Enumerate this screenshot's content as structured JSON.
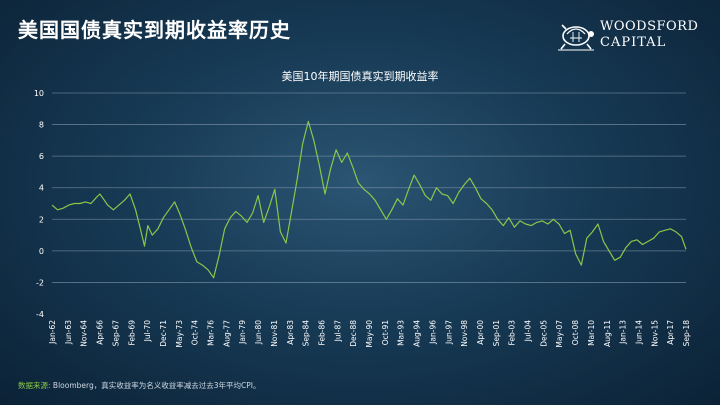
{
  "slide": {
    "title": "美国国债真实到期收益率历史"
  },
  "logo": {
    "line1": "WOODSFORD",
    "line2": "CAPITAL"
  },
  "footnote": {
    "label": "数据来源:",
    "text": "Bloomberg，真实收益率为名义收益率减去过去3年平均CPI。"
  },
  "colors": {
    "line": "#8ac64a",
    "grid": "#9fb2c4",
    "source_label": "#8ac64a"
  },
  "chart_data": {
    "type": "line",
    "title": "美国10年期国债真实到期收益率",
    "xlabel": "",
    "ylabel": "",
    "ylim": [
      -4,
      10
    ],
    "y_ticks": [
      -4,
      -2,
      0,
      2,
      4,
      6,
      8,
      10
    ],
    "grid": true,
    "x_tick_labels": [
      "Jan-62",
      "Jun-63",
      "Nov-64",
      "Apr-66",
      "Sep-67",
      "Feb-69",
      "Jul-70",
      "Dec-71",
      "May-73",
      "Oct-74",
      "Mar-76",
      "Aug-77",
      "Jan-79",
      "Jun-80",
      "Nov-81",
      "Apr-83",
      "Sep-84",
      "Feb-86",
      "Jul-87",
      "Dec-88",
      "May-90",
      "Oct-91",
      "Mar-93",
      "Aug-94",
      "Jan-96",
      "Jun-97",
      "Nov-98",
      "Apr-00",
      "Sep-01",
      "Feb-03",
      "Jul-04",
      "Dec-05",
      "May-07",
      "Oct-08",
      "Mar-10",
      "Aug-11",
      "Jan-13",
      "Jun-14",
      "Nov-15",
      "Apr-17",
      "Sep-18"
    ],
    "x": [
      1962.0,
      1962.5,
      1963.0,
      1963.5,
      1964.0,
      1964.5,
      1965.0,
      1965.5,
      1966.0,
      1966.3,
      1966.7,
      1967.0,
      1967.5,
      1968.0,
      1968.5,
      1969.0,
      1969.5,
      1970.0,
      1970.3,
      1970.6,
      1971.0,
      1971.5,
      1972.0,
      1972.5,
      1973.0,
      1973.5,
      1974.0,
      1974.5,
      1975.0,
      1975.5,
      1976.0,
      1976.5,
      1977.0,
      1977.5,
      1978.0,
      1978.5,
      1979.0,
      1979.5,
      1980.0,
      1980.5,
      1981.0,
      1981.5,
      1982.0,
      1982.5,
      1983.0,
      1983.5,
      1984.0,
      1984.5,
      1985.0,
      1985.5,
      1986.0,
      1986.5,
      1987.0,
      1987.5,
      1988.0,
      1988.5,
      1989.0,
      1989.5,
      1990.0,
      1990.5,
      1991.0,
      1991.5,
      1992.0,
      1992.5,
      1993.0,
      1993.5,
      1994.0,
      1994.5,
      1995.0,
      1995.5,
      1996.0,
      1996.5,
      1997.0,
      1997.5,
      1998.0,
      1998.5,
      1999.0,
      1999.5,
      2000.0,
      2000.5,
      2001.0,
      2001.5,
      2002.0,
      2002.5,
      2003.0,
      2003.5,
      2004.0,
      2004.5,
      2005.0,
      2005.5,
      2006.0,
      2006.5,
      2007.0,
      2007.5,
      2008.0,
      2008.5,
      2009.0,
      2009.5,
      2010.0,
      2010.5,
      2011.0,
      2011.5,
      2012.0,
      2012.5,
      2013.0,
      2013.5,
      2014.0,
      2014.5,
      2015.0,
      2015.5,
      2016.0,
      2016.5,
      2017.0,
      2017.5,
      2018.0,
      2018.5,
      2018.9
    ],
    "series": [
      {
        "values": [
          2.9,
          2.6,
          2.7,
          2.9,
          3.0,
          3.0,
          3.1,
          3.0,
          3.4,
          3.6,
          3.2,
          2.9,
          2.6,
          2.9,
          3.2,
          3.6,
          2.6,
          1.2,
          0.3,
          1.6,
          1.0,
          1.4,
          2.1,
          2.6,
          3.1,
          2.3,
          1.3,
          0.2,
          -0.7,
          -0.9,
          -1.2,
          -1.7,
          -0.3,
          1.4,
          2.1,
          2.5,
          2.2,
          1.8,
          2.4,
          3.5,
          1.8,
          2.8,
          3.9,
          1.2,
          0.5,
          2.5,
          4.5,
          6.8,
          8.2,
          7.0,
          5.4,
          3.6,
          5.2,
          6.4,
          5.6,
          6.2,
          5.3,
          4.3,
          3.9,
          3.6,
          3.2,
          2.6,
          2.0,
          2.6,
          3.3,
          2.9,
          3.9,
          4.8,
          4.2,
          3.5,
          3.2,
          4.0,
          3.6,
          3.5,
          3.0,
          3.7,
          4.2,
          4.6,
          4.0,
          3.3,
          3.0,
          2.6,
          2.0,
          1.6,
          2.1,
          1.5,
          1.9,
          1.7,
          1.6,
          1.8,
          1.9,
          1.7,
          2.0,
          1.7,
          1.1,
          1.3,
          -0.2,
          -0.9,
          0.8,
          1.2,
          1.7,
          0.6,
          0.0,
          -0.6,
          -0.4,
          0.2,
          0.6,
          0.7,
          0.4,
          0.6,
          0.8,
          1.2,
          1.3,
          1.4,
          1.2,
          0.9,
          0.1
        ]
      }
    ]
  }
}
